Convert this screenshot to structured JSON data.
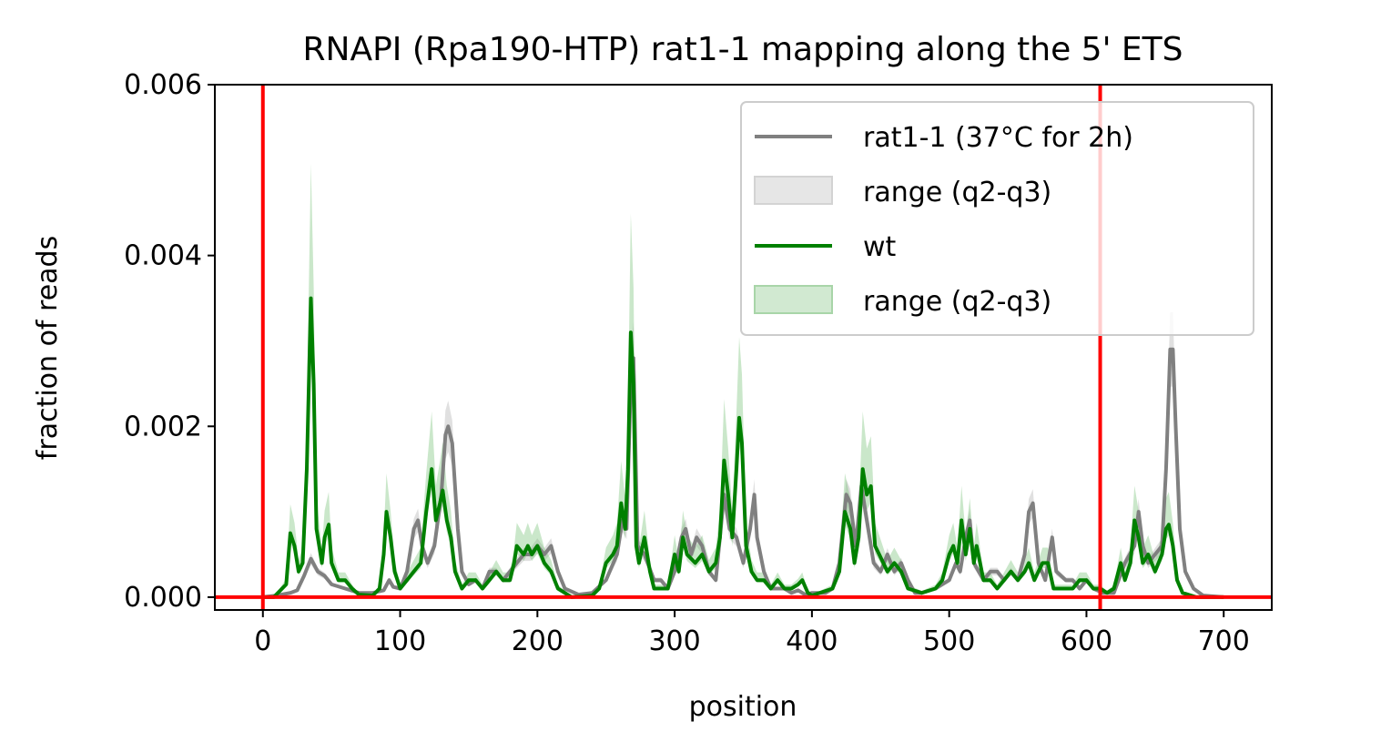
{
  "chart_data": {
    "type": "line",
    "title": "RNAPI (Rpa190-HTP) rat1-1 mapping along the 5' ETS",
    "xlabel": "position",
    "ylabel": "fraction of reads",
    "xlim": [
      -35,
      735
    ],
    "ylim": [
      -0.00015,
      0.006
    ],
    "xticks": [
      0,
      100,
      200,
      300,
      400,
      500,
      600,
      700
    ],
    "xtick_labels": [
      "0",
      "100",
      "200",
      "300",
      "400",
      "500",
      "600",
      "700"
    ],
    "yticks": [
      0.0,
      0.002,
      0.004,
      0.006
    ],
    "ytick_labels": [
      "0.000",
      "0.002",
      "0.004",
      "0.006"
    ],
    "vlines": [
      0,
      610
    ],
    "hline": 0,
    "reference_line_color": "#ff0000",
    "legend_position": "upper-right",
    "legend": [
      {
        "label": "rat1-1 (37°C for 2h)",
        "kind": "line",
        "color": "#808080"
      },
      {
        "label": "range (q2-q3)",
        "kind": "patch",
        "color": "#d3d3d3"
      },
      {
        "label": "wt",
        "kind": "line",
        "color": "#008000"
      },
      {
        "label": "range (q2-q3)",
        "kind": "patch",
        "color": "#a8d5a8"
      }
    ],
    "series": [
      {
        "name": "rat1-1 (37°C for 2h)",
        "color": "#808080",
        "band_color": "#bbbbbb",
        "band_scale": 1.15,
        "points": [
          [
            0,
            0
          ],
          [
            10,
            2e-05
          ],
          [
            20,
            5e-05
          ],
          [
            25,
            8e-05
          ],
          [
            30,
            0.00025
          ],
          [
            35,
            0.00045
          ],
          [
            40,
            0.0003
          ],
          [
            45,
            0.00025
          ],
          [
            50,
            0.00015
          ],
          [
            60,
            0.0001
          ],
          [
            70,
            5e-05
          ],
          [
            80,
            5e-05
          ],
          [
            88,
            8e-05
          ],
          [
            92,
            0.0002
          ],
          [
            95,
            0.00012
          ],
          [
            100,
            0.0001
          ],
          [
            105,
            0.0003
          ],
          [
            110,
            0.0008
          ],
          [
            113,
            0.0009
          ],
          [
            116,
            0.0006
          ],
          [
            120,
            0.0004
          ],
          [
            125,
            0.0006
          ],
          [
            130,
            0.0012
          ],
          [
            133,
            0.0019
          ],
          [
            135,
            0.002
          ],
          [
            138,
            0.0018
          ],
          [
            142,
            0.0008
          ],
          [
            145,
            0.0003
          ],
          [
            150,
            0.00015
          ],
          [
            155,
            0.0002
          ],
          [
            160,
            0.0001
          ],
          [
            165,
            0.0003
          ],
          [
            170,
            0.0003
          ],
          [
            175,
            0.0002
          ],
          [
            180,
            0.0003
          ],
          [
            185,
            0.0004
          ],
          [
            190,
            0.0005
          ],
          [
            195,
            0.0005
          ],
          [
            200,
            0.0006
          ],
          [
            205,
            0.0005
          ],
          [
            210,
            0.0006
          ],
          [
            215,
            0.0003
          ],
          [
            220,
            0.0001
          ],
          [
            230,
            3e-05
          ],
          [
            240,
            5e-05
          ],
          [
            250,
            0.0002
          ],
          [
            258,
            0.0005
          ],
          [
            262,
            0.0009
          ],
          [
            265,
            0.0008
          ],
          [
            268,
            0.0025
          ],
          [
            270,
            0.0028
          ],
          [
            273,
            0.0006
          ],
          [
            278,
            0.0005
          ],
          [
            285,
            0.0002
          ],
          [
            290,
            0.0002
          ],
          [
            295,
            0.0001
          ],
          [
            300,
            0.0003
          ],
          [
            305,
            0.0007
          ],
          [
            308,
            0.0008
          ],
          [
            312,
            0.0005
          ],
          [
            316,
            0.0007
          ],
          [
            320,
            0.0006
          ],
          [
            325,
            0.0003
          ],
          [
            330,
            0.0002
          ],
          [
            336,
            0.0012
          ],
          [
            340,
            0.0008
          ],
          [
            345,
            0.0007
          ],
          [
            350,
            0.0004
          ],
          [
            355,
            0.0008
          ],
          [
            358,
            0.0012
          ],
          [
            360,
            0.0007
          ],
          [
            365,
            0.0003
          ],
          [
            370,
            0.0001
          ],
          [
            380,
            0.0001
          ],
          [
            385,
            5e-05
          ],
          [
            390,
            8e-05
          ],
          [
            395,
            3e-05
          ],
          [
            400,
            5e-05
          ],
          [
            410,
            5e-05
          ],
          [
            415,
            0.0001
          ],
          [
            420,
            0.0004
          ],
          [
            425,
            0.0012
          ],
          [
            428,
            0.0011
          ],
          [
            432,
            0.0006
          ],
          [
            436,
            0.0013
          ],
          [
            440,
            0.0009
          ],
          [
            445,
            0.0004
          ],
          [
            450,
            0.0003
          ],
          [
            455,
            0.0005
          ],
          [
            460,
            0.0003
          ],
          [
            465,
            0.0004
          ],
          [
            470,
            0.0002
          ],
          [
            475,
            5e-05
          ],
          [
            480,
            5e-05
          ],
          [
            490,
            0.0001
          ],
          [
            500,
            0.0002
          ],
          [
            505,
            0.0004
          ],
          [
            508,
            0.0003
          ],
          [
            512,
            0.0007
          ],
          [
            515,
            0.0009
          ],
          [
            518,
            0.0004
          ],
          [
            525,
            0.0002
          ],
          [
            530,
            0.0003
          ],
          [
            535,
            0.0003
          ],
          [
            540,
            0.0002
          ],
          [
            545,
            0.0003
          ],
          [
            550,
            0.0002
          ],
          [
            555,
            0.0005
          ],
          [
            558,
            0.001
          ],
          [
            561,
            0.0011
          ],
          [
            565,
            0.0004
          ],
          [
            570,
            0.0002
          ],
          [
            575,
            0.0007
          ],
          [
            578,
            0.0003
          ],
          [
            585,
            0.0002
          ],
          [
            590,
            0.0002
          ],
          [
            595,
            0.0001
          ],
          [
            600,
            0.0002
          ],
          [
            605,
            0.0001
          ],
          [
            612,
            5e-05
          ],
          [
            620,
            5e-05
          ],
          [
            628,
            0.0004
          ],
          [
            635,
            0.0006
          ],
          [
            638,
            0.001
          ],
          [
            641,
            0.0006
          ],
          [
            645,
            0.0004
          ],
          [
            650,
            0.0005
          ],
          [
            655,
            0.0006
          ],
          [
            658,
            0.0015
          ],
          [
            661,
            0.0029
          ],
          [
            663,
            0.0029
          ],
          [
            665,
            0.002
          ],
          [
            668,
            0.0008
          ],
          [
            672,
            0.0003
          ],
          [
            678,
            0.0001
          ],
          [
            685,
            2e-05
          ],
          [
            700,
            0
          ]
        ]
      },
      {
        "name": "wt",
        "color": "#008000",
        "band_color": "#66bb66",
        "band_scale": 1.45,
        "points": [
          [
            0,
            0
          ],
          [
            8,
            0
          ],
          [
            14,
            0.0001
          ],
          [
            17,
            0.00015
          ],
          [
            20,
            0.00075
          ],
          [
            23,
            0.0006
          ],
          [
            26,
            0.0003
          ],
          [
            29,
            0.0004
          ],
          [
            32,
            0.0015
          ],
          [
            35,
            0.0035
          ],
          [
            37,
            0.0025
          ],
          [
            39,
            0.0008
          ],
          [
            41,
            0.0006
          ],
          [
            43,
            0.0004
          ],
          [
            45,
            0.0007
          ],
          [
            48,
            0.00085
          ],
          [
            50,
            0.0004
          ],
          [
            55,
            0.0002
          ],
          [
            60,
            0.0002
          ],
          [
            65,
            0.0001
          ],
          [
            70,
            3e-05
          ],
          [
            80,
            2e-05
          ],
          [
            85,
            0.0001
          ],
          [
            88,
            0.0005
          ],
          [
            90,
            0.001
          ],
          [
            93,
            0.0007
          ],
          [
            96,
            0.0003
          ],
          [
            100,
            0.0001
          ],
          [
            105,
            0.0002
          ],
          [
            110,
            0.0003
          ],
          [
            115,
            0.0004
          ],
          [
            119,
            0.001
          ],
          [
            123,
            0.0015
          ],
          [
            126,
            0.0009
          ],
          [
            129,
            0.0011
          ],
          [
            131,
            0.00125
          ],
          [
            134,
            0.0009
          ],
          [
            137,
            0.0007
          ],
          [
            140,
            0.0003
          ],
          [
            145,
            0.0001
          ],
          [
            150,
            0.0002
          ],
          [
            155,
            0.0002
          ],
          [
            160,
            0.0001
          ],
          [
            165,
            0.0002
          ],
          [
            170,
            0.0003
          ],
          [
            175,
            0.0002
          ],
          [
            180,
            0.0002
          ],
          [
            183,
            0.0004
          ],
          [
            185,
            0.0006
          ],
          [
            190,
            0.0005
          ],
          [
            193,
            0.0006
          ],
          [
            196,
            0.0005
          ],
          [
            200,
            0.0006
          ],
          [
            205,
            0.0004
          ],
          [
            210,
            0.0003
          ],
          [
            215,
            0.0001
          ],
          [
            225,
            0.0
          ],
          [
            240,
            2e-05
          ],
          [
            245,
            0.0001
          ],
          [
            250,
            0.0004
          ],
          [
            255,
            0.0005
          ],
          [
            258,
            0.0006
          ],
          [
            261,
            0.0011
          ],
          [
            264,
            0.0008
          ],
          [
            266,
            0.0015
          ],
          [
            268,
            0.0031
          ],
          [
            270,
            0.0025
          ],
          [
            272,
            0.0006
          ],
          [
            274,
            0.0004
          ],
          [
            278,
            0.0007
          ],
          [
            282,
            0.0003
          ],
          [
            285,
            0.0001
          ],
          [
            295,
            0.0001
          ],
          [
            300,
            0.0005
          ],
          [
            303,
            0.0003
          ],
          [
            306,
            0.0007
          ],
          [
            309,
            0.0005
          ],
          [
            315,
            0.0004
          ],
          [
            320,
            0.0005
          ],
          [
            325,
            0.0003
          ],
          [
            330,
            0.0004
          ],
          [
            333,
            0.0007
          ],
          [
            336,
            0.0016
          ],
          [
            339,
            0.0012
          ],
          [
            342,
            0.0007
          ],
          [
            345,
            0.0015
          ],
          [
            347,
            0.0021
          ],
          [
            349,
            0.0018
          ],
          [
            352,
            0.0006
          ],
          [
            356,
            0.0003
          ],
          [
            360,
            0.0002
          ],
          [
            365,
            0.0002
          ],
          [
            370,
            0.0001
          ],
          [
            375,
            0.0002
          ],
          [
            380,
            0.0001
          ],
          [
            385,
            0.0001
          ],
          [
            390,
            0.00015
          ],
          [
            393,
            0.0002
          ],
          [
            397,
            5e-05
          ],
          [
            400,
            2e-05
          ],
          [
            415,
            0.0001
          ],
          [
            420,
            0.0003
          ],
          [
            424,
            0.001
          ],
          [
            428,
            0.0008
          ],
          [
            431,
            0.0004
          ],
          [
            434,
            0.0007
          ],
          [
            437,
            0.0015
          ],
          [
            440,
            0.0012
          ],
          [
            443,
            0.0013
          ],
          [
            446,
            0.0006
          ],
          [
            449,
            0.0005
          ],
          [
            452,
            0.0004
          ],
          [
            455,
            0.0003
          ],
          [
            460,
            0.0004
          ],
          [
            465,
            0.0003
          ],
          [
            470,
            0.0001
          ],
          [
            480,
            5e-05
          ],
          [
            490,
            0.0001
          ],
          [
            495,
            0.0002
          ],
          [
            500,
            0.0005
          ],
          [
            503,
            0.0006
          ],
          [
            506,
            0.0004
          ],
          [
            509,
            0.0009
          ],
          [
            512,
            0.0005
          ],
          [
            515,
            0.0008
          ],
          [
            518,
            0.0004
          ],
          [
            520,
            0.0006
          ],
          [
            525,
            0.0002
          ],
          [
            530,
            0.0002
          ],
          [
            535,
            0.0001
          ],
          [
            540,
            0.0002
          ],
          [
            545,
            0.0003
          ],
          [
            550,
            0.0002
          ],
          [
            555,
            0.0003
          ],
          [
            558,
            0.0004
          ],
          [
            562,
            0.0002
          ],
          [
            568,
            0.0004
          ],
          [
            572,
            0.0004
          ],
          [
            576,
            0.0001
          ],
          [
            580,
            0.0001
          ],
          [
            590,
            0.0001
          ],
          [
            595,
            0.0002
          ],
          [
            600,
            0.0002
          ],
          [
            605,
            0.0001
          ],
          [
            610,
            0.0001
          ],
          [
            615,
            5e-05
          ],
          [
            620,
            0.0001
          ],
          [
            625,
            0.0004
          ],
          [
            628,
            0.0002
          ],
          [
            632,
            0.0004
          ],
          [
            635,
            0.0009
          ],
          [
            638,
            0.0007
          ],
          [
            641,
            0.0004
          ],
          [
            645,
            0.0005
          ],
          [
            650,
            0.0003
          ],
          [
            655,
            0.0005
          ],
          [
            658,
            0.0008
          ],
          [
            660,
            0.00085
          ],
          [
            663,
            0.0006
          ],
          [
            666,
            0.0002
          ],
          [
            670,
            5e-05
          ],
          [
            680,
            0.0
          ],
          [
            690,
            0.0
          ],
          [
            700,
            0
          ]
        ]
      }
    ]
  }
}
